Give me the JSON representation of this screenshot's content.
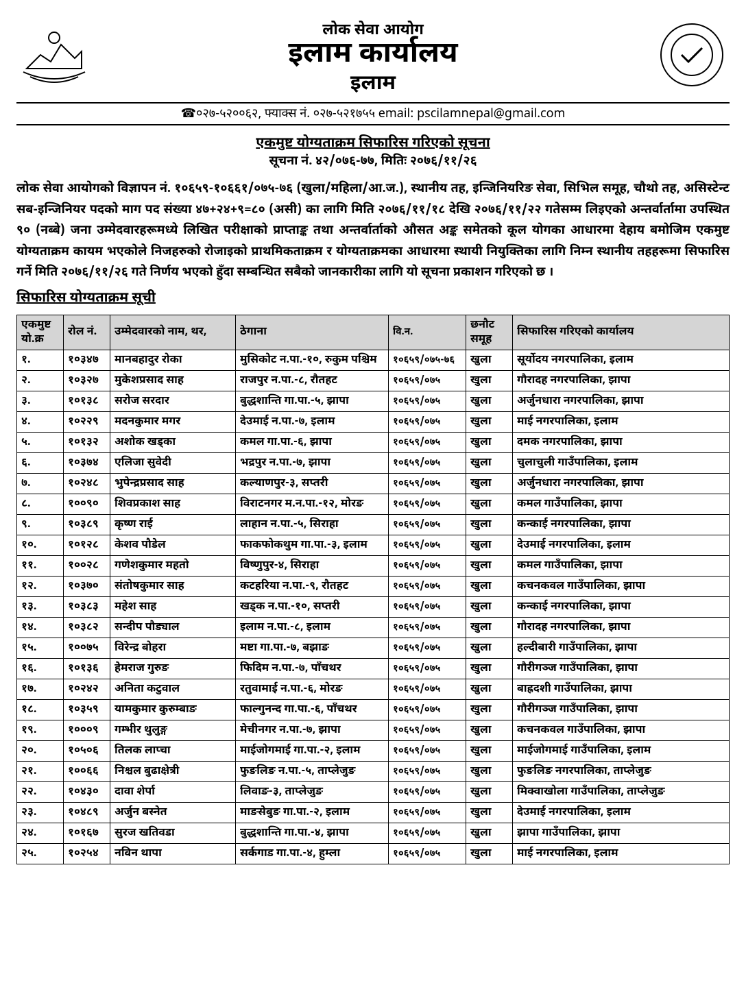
{
  "header": {
    "org_top": "लोक सेवा आयोग",
    "office": "इलाम कार्यालय",
    "place": "इलाम",
    "contact": "☎०२७-५२००६२, फ्याक्स नं. ०२७-५२१७५५ email: pscilamnepal@gmail.com"
  },
  "notice": {
    "title": "एकमुष्ट योग्यताक्रम सिफारिस गरिएको सूचना",
    "sub": "सूचना नं. ४२/०७६-७७, मितिः २०७६/११/२६",
    "para": "लोक सेवा आयोगको विज्ञापन नं. १०६५९-१०६६१/०७५-७६ (खुला/महिला/आ.ज.), स्थानीय तह, इन्जिनियरिङ सेवा, सिभिल समूह, चौथो तह, असिस्टेन्ट सब-इन्जिनियर पदको माग पद संख्या ४७+२४+९=८० (असी) का लागि मिति २०७६/११/१८ देखि २०७६/११/२२ गतेसम्म लिइएको अन्तर्वार्तामा उपस्थित ९० (नब्बे) जना उम्मेदवारहरूमध्ये लिखित परीक्षाको प्राप्ताङ्क तथा अन्तर्वार्ताको औसत अङ्क समेतको कूल योगका आधारमा देहाय बमोजिम एकमुष्ट योग्यताक्रम कायम भएकोले निजहरुको रोजाइको प्राथमिकताक्रम र योग्यताक्रमका आधारमा स्थायी नियुक्तिका लागि निम्न स्थानीय तहहरूमा सिफारिस गर्ने मिति २०७६/११/२६ गते निर्णय भएको हुँदा सम्बन्धित सबैको जानकारीका लागि यो सूचना प्रकाशन गरिएको छ ।",
    "list_title": "सिफारिस योग्यताक्रम सूची"
  },
  "table": {
    "headers": {
      "sn": "एकमुष्ट यो.क्र",
      "roll": "रोल नं.",
      "name": "उम्मेदवारको नाम, थर,",
      "address": "ठेगाना",
      "advert": "वि.न.",
      "group": "छनौट समूह",
      "office": "सिफारिस गरिएको कार्यालय"
    },
    "rows": [
      {
        "sn": "१.",
        "roll": "१०३४७",
        "name": "मानबहादुर रोका",
        "address": "मुसिकोट न.पा.-१०, रुकुम पश्चिम",
        "advert": "१०६५९/०७५-७६",
        "group": "खुला",
        "office": "सूर्योदय नगरपालिका, इलाम"
      },
      {
        "sn": "२.",
        "roll": "१०३२७",
        "name": "मुकेशप्रसाद साह",
        "address": "राजपुर न.पा.-८, रौतहट",
        "advert": "१०६५९/०७५",
        "group": "खुला",
        "office": "गौरादह नगरपालिका, झापा"
      },
      {
        "sn": "३.",
        "roll": "१०१३८",
        "name": "सरोज सरदार",
        "address": "बुद्धशान्ति गा.पा.-५, झापा",
        "advert": "१०६५९/०७५",
        "group": "खुला",
        "office": "अर्जुनधारा नगरपालिका, झापा"
      },
      {
        "sn": "४.",
        "roll": "१०२२९",
        "name": "मदनकुमार मगर",
        "address": "देउमाई न.पा.-७, इलाम",
        "advert": "१०६५९/०७५",
        "group": "खुला",
        "office": "माई नगरपालिका, इलाम"
      },
      {
        "sn": "५.",
        "roll": "१०१३२",
        "name": "अशोक खड्का",
        "address": "कमल गा.पा.-६, झापा",
        "advert": "१०६५९/०७५",
        "group": "खुला",
        "office": "दमक नगरपालिका, झापा"
      },
      {
        "sn": "६.",
        "roll": "१०३७४",
        "name": "एलिजा सुवेदी",
        "address": "भद्रपुर न.पा.-७, झापा",
        "advert": "१०६५९/०७५",
        "group": "खुला",
        "office": "चुलाचुली गाउँपालिका, इलाम"
      },
      {
        "sn": "७.",
        "roll": "१०२४८",
        "name": "भुपेन्द्रप्रसाद साह",
        "address": "कल्याणपुर-३, सप्तरी",
        "advert": "१०६५९/०७५",
        "group": "खुला",
        "office": "अर्जुनधारा नगरपालिका, झापा"
      },
      {
        "sn": "८.",
        "roll": "१००९०",
        "name": "शिवप्रकाश साह",
        "address": "विराटनगर म.न.पा.-१२, मोरङ",
        "advert": "१०६५९/०७५",
        "group": "खुला",
        "office": "कमल गाउँपालिका, झापा"
      },
      {
        "sn": "९.",
        "roll": "१०३८९",
        "name": "कृष्ण राई",
        "address": "लाहान न.पा.-५, सिराहा",
        "advert": "१०६५९/०७५",
        "group": "खुला",
        "office": "कन्काई नगरपालिका, झापा"
      },
      {
        "sn": "१०.",
        "roll": "१०१२८",
        "name": "केशव पौडेल",
        "address": "फाकफोकथुम गा.पा.-३, इलाम",
        "advert": "१०६५९/०७५",
        "group": "खुला",
        "office": "देउमाई नगरपालिका, इलाम"
      },
      {
        "sn": "११.",
        "roll": "१००२८",
        "name": "गणेशकुमार महतो",
        "address": "विष्णुपुर-४, सिराहा",
        "advert": "१०६५९/०७५",
        "group": "खुला",
        "office": "कमल गाउँपालिका, झापा"
      },
      {
        "sn": "१२.",
        "roll": "१०३७०",
        "name": "संतोषकुमार साह",
        "address": "कटहरिया न.पा.-९, रौतहट",
        "advert": "१०६५९/०७५",
        "group": "खुला",
        "office": "कचनकवल गाउँपालिका, झापा"
      },
      {
        "sn": "१३.",
        "roll": "१०३८३",
        "name": "महेश साह",
        "address": "खड्क न.पा.-१०, सप्तरी",
        "advert": "१०६५९/०७५",
        "group": "खुला",
        "office": "कन्काई नगरपालिका, झापा"
      },
      {
        "sn": "१४.",
        "roll": "१०३८२",
        "name": "सन्दीप पौड्याल",
        "address": "इलाम न.पा.-८, इलाम",
        "advert": "१०६५९/०७५",
        "group": "खुला",
        "office": "गौरादह नगरपालिका, झापा"
      },
      {
        "sn": "१५.",
        "roll": "१००७५",
        "name": "विरेन्द्र बोहरा",
        "address": "मष्टा गा.पा.-७, बझाङ",
        "advert": "१०६५९/०७५",
        "group": "खुला",
        "office": "हल्दीबारी गाउँपालिका, झापा"
      },
      {
        "sn": "१६.",
        "roll": "१०१३६",
        "name": "हेमराज गुरुङ",
        "address": "फिदिम न.पा.-७, पाँचथर",
        "advert": "१०६५९/०७५",
        "group": "खुला",
        "office": "गौरीगञ्ज गाउँपालिका, झापा"
      },
      {
        "sn": "१७.",
        "roll": "१०२४२",
        "name": "अनिता कटुवाल",
        "address": "रतुवामाई न.पा.-६, मोरङ",
        "advert": "१०६५९/०७५",
        "group": "खुला",
        "office": "बाह्रदशी गाउँपालिका, झापा"
      },
      {
        "sn": "१८.",
        "roll": "१०३५९",
        "name": "यामकुमार कुरुम्बाङ",
        "address": "फाल्गुनन्द गा.पा.-६, पाँचथर",
        "advert": "१०६५९/०७५",
        "group": "खुला",
        "office": "गौरीगञ्ज गाउँपालिका, झापा"
      },
      {
        "sn": "१९.",
        "roll": "१०००९",
        "name": "गम्भीर थुलुङ्ग",
        "address": "मेचीनगर न.पा.-७, झापा",
        "advert": "१०६५९/०७५",
        "group": "खुला",
        "office": "कचनकवल गाउँपालिका, झापा"
      },
      {
        "sn": "२०.",
        "roll": "१०५०६",
        "name": "तिलक लाप्चा",
        "address": "माईजोगमाई गा.पा.-२, इलाम",
        "advert": "१०६५९/०७५",
        "group": "खुला",
        "office": "माईजोगमाई गाउँपालिका, इलाम"
      },
      {
        "sn": "२१.",
        "roll": "१००६६",
        "name": "निश्चल बुढाक्षेत्री",
        "address": "फुङलिङ न.पा.-५, ताप्लेजुङ",
        "advert": "१०६५९/०७५",
        "group": "खुला",
        "office": "फुङलिङ नगरपालिका, ताप्लेजुङ"
      },
      {
        "sn": "२२.",
        "roll": "१०४३०",
        "name": "दावा शेर्पा",
        "address": "लिवाङ-३, ताप्लेजुङ",
        "advert": "१०६५९/०७५",
        "group": "खुला",
        "office": "मिक्वाखोला गाउँपालिका, ताप्लेजुङ"
      },
      {
        "sn": "२३.",
        "roll": "१०४८९",
        "name": "अर्जुन बस्नेत",
        "address": "माङसेबुङ गा.पा.-२, इलाम",
        "advert": "१०६५९/०७५",
        "group": "खुला",
        "office": "देउमाई नगरपालिका, इलाम"
      },
      {
        "sn": "२४.",
        "roll": "१०१६७",
        "name": "सुरज खतिवडा",
        "address": "बुद्धशान्ति गा.पा.-४, झापा",
        "advert": "१०६५९/०७५",
        "group": "खुला",
        "office": "झापा गाउँपालिका, झापा"
      },
      {
        "sn": "२५.",
        "roll": "१०२५४",
        "name": "नविन थापा",
        "address": "सर्कगाड गा.पा.-४, हुम्ला",
        "advert": "१०६५९/०७५",
        "group": "खुला",
        "office": "माई नगरपालिका, इलाम"
      }
    ]
  }
}
